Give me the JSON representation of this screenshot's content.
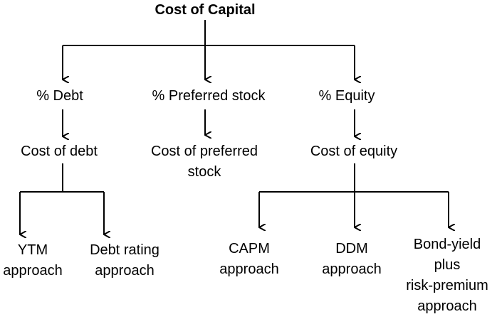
{
  "diagram": {
    "root": {
      "label": "Cost of Capital"
    },
    "weights": {
      "debt": "% Debt",
      "preferred": "% Preferred stock",
      "equity": "% Equity"
    },
    "costs": {
      "debt": "Cost of debt",
      "preferred_line1": "Cost of preferred",
      "preferred_line2": "stock",
      "equity": "Cost of equity"
    },
    "debt_methods": {
      "ytm_line1": "YTM",
      "ytm_line2": "approach",
      "rating_line1": "Debt rating",
      "rating_line2": "approach"
    },
    "equity_methods": {
      "capm_line1": "CAPM",
      "capm_line2": "approach",
      "ddm_line1": "DDM",
      "ddm_line2": "approach",
      "bond_line1": "Bond-yield",
      "bond_line2": "plus",
      "bond_line3": "risk-premium",
      "bond_line4": "approach"
    },
    "colors": {
      "line": "#000000",
      "text": "#000000",
      "background": "#ffffff"
    }
  }
}
